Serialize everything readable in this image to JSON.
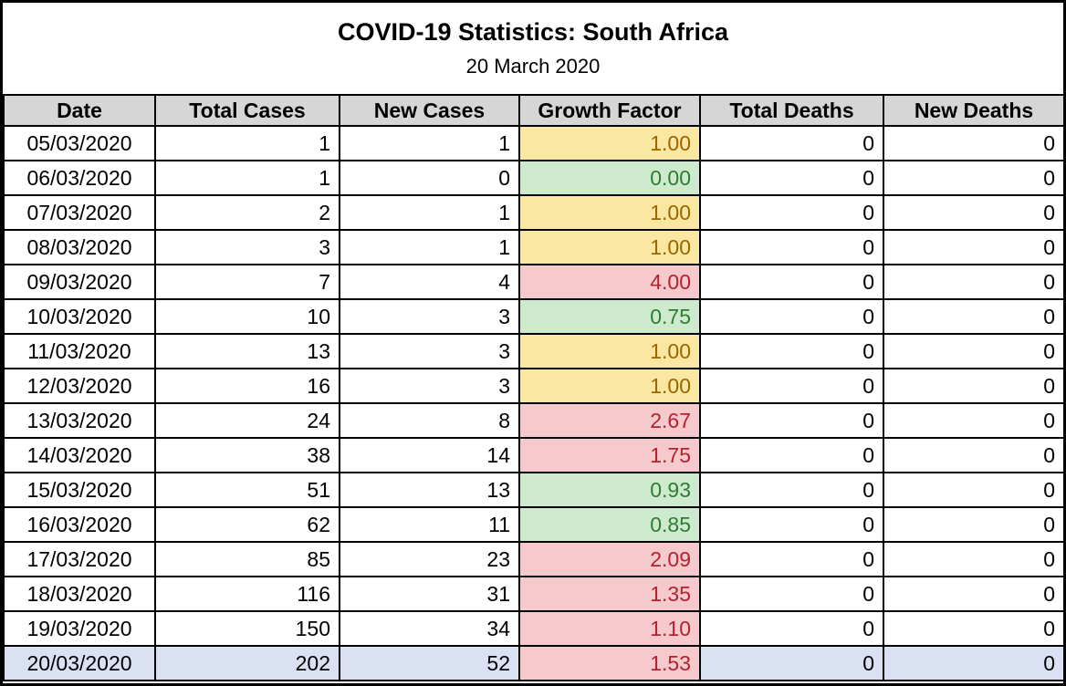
{
  "title": "COVID-19 Statistics: South Africa",
  "subtitle": "20 March 2020",
  "chart_data": {
    "type": "table",
    "title": "COVID-19 Statistics: South Africa",
    "subtitle": "20 March 2020",
    "columns": [
      "Date",
      "Total Cases",
      "New Cases",
      "Growth Factor",
      "Total Deaths",
      "New Deaths"
    ],
    "rows": [
      {
        "date": "05/03/2020",
        "total_cases": 1,
        "new_cases": 1,
        "growth_factor": "1.00",
        "growth_status": "neutral",
        "total_deaths": 0,
        "new_deaths": 0,
        "highlighted": false
      },
      {
        "date": "06/03/2020",
        "total_cases": 1,
        "new_cases": 0,
        "growth_factor": "0.00",
        "growth_status": "good",
        "total_deaths": 0,
        "new_deaths": 0,
        "highlighted": false
      },
      {
        "date": "07/03/2020",
        "total_cases": 2,
        "new_cases": 1,
        "growth_factor": "1.00",
        "growth_status": "neutral",
        "total_deaths": 0,
        "new_deaths": 0,
        "highlighted": false
      },
      {
        "date": "08/03/2020",
        "total_cases": 3,
        "new_cases": 1,
        "growth_factor": "1.00",
        "growth_status": "neutral",
        "total_deaths": 0,
        "new_deaths": 0,
        "highlighted": false
      },
      {
        "date": "09/03/2020",
        "total_cases": 7,
        "new_cases": 4,
        "growth_factor": "4.00",
        "growth_status": "bad",
        "total_deaths": 0,
        "new_deaths": 0,
        "highlighted": false
      },
      {
        "date": "10/03/2020",
        "total_cases": 10,
        "new_cases": 3,
        "growth_factor": "0.75",
        "growth_status": "good",
        "total_deaths": 0,
        "new_deaths": 0,
        "highlighted": false
      },
      {
        "date": "11/03/2020",
        "total_cases": 13,
        "new_cases": 3,
        "growth_factor": "1.00",
        "growth_status": "neutral",
        "total_deaths": 0,
        "new_deaths": 0,
        "highlighted": false
      },
      {
        "date": "12/03/2020",
        "total_cases": 16,
        "new_cases": 3,
        "growth_factor": "1.00",
        "growth_status": "neutral",
        "total_deaths": 0,
        "new_deaths": 0,
        "highlighted": false
      },
      {
        "date": "13/03/2020",
        "total_cases": 24,
        "new_cases": 8,
        "growth_factor": "2.67",
        "growth_status": "bad",
        "total_deaths": 0,
        "new_deaths": 0,
        "highlighted": false
      },
      {
        "date": "14/03/2020",
        "total_cases": 38,
        "new_cases": 14,
        "growth_factor": "1.75",
        "growth_status": "bad",
        "total_deaths": 0,
        "new_deaths": 0,
        "highlighted": false
      },
      {
        "date": "15/03/2020",
        "total_cases": 51,
        "new_cases": 13,
        "growth_factor": "0.93",
        "growth_status": "good",
        "total_deaths": 0,
        "new_deaths": 0,
        "highlighted": false
      },
      {
        "date": "16/03/2020",
        "total_cases": 62,
        "new_cases": 11,
        "growth_factor": "0.85",
        "growth_status": "good",
        "total_deaths": 0,
        "new_deaths": 0,
        "highlighted": false
      },
      {
        "date": "17/03/2020",
        "total_cases": 85,
        "new_cases": 23,
        "growth_factor": "2.09",
        "growth_status": "bad",
        "total_deaths": 0,
        "new_deaths": 0,
        "highlighted": false
      },
      {
        "date": "18/03/2020",
        "total_cases": 116,
        "new_cases": 31,
        "growth_factor": "1.35",
        "growth_status": "bad",
        "total_deaths": 0,
        "new_deaths": 0,
        "highlighted": false
      },
      {
        "date": "19/03/2020",
        "total_cases": 150,
        "new_cases": 34,
        "growth_factor": "1.10",
        "growth_status": "bad",
        "total_deaths": 0,
        "new_deaths": 0,
        "highlighted": false
      },
      {
        "date": "20/03/2020",
        "total_cases": 202,
        "new_cases": 52,
        "growth_factor": "1.53",
        "growth_status": "bad",
        "total_deaths": 0,
        "new_deaths": 0,
        "highlighted": true
      }
    ],
    "conditional_formatting": {
      "growth_factor": {
        "neutral": {
          "bg": "#FAE7A1",
          "text": "#9C6500"
        },
        "good": {
          "bg": "#CDEACF",
          "text": "#2E7D32"
        },
        "bad": {
          "bg": "#F6C9CD",
          "text": "#B3222E"
        }
      },
      "latest_row_bg": "#D9E1F2"
    },
    "colors": {
      "header_bg": "#D6D6D6",
      "border": "#000000",
      "background": "#FFFFFF"
    }
  }
}
